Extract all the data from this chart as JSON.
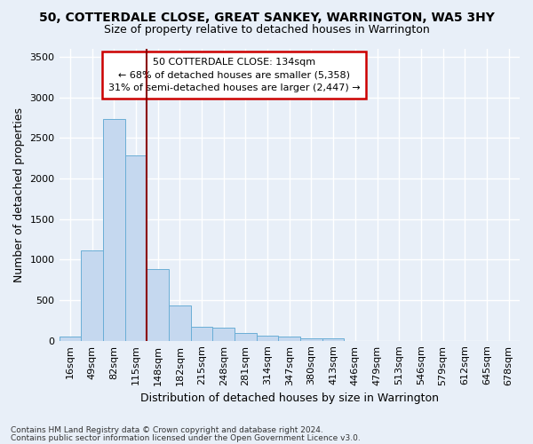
{
  "title1": "50, COTTERDALE CLOSE, GREAT SANKEY, WARRINGTON, WA5 3HY",
  "title2": "Size of property relative to detached houses in Warrington",
  "xlabel": "Distribution of detached houses by size in Warrington",
  "ylabel": "Number of detached properties",
  "categories": [
    "16sqm",
    "49sqm",
    "82sqm",
    "115sqm",
    "148sqm",
    "182sqm",
    "215sqm",
    "248sqm",
    "281sqm",
    "314sqm",
    "347sqm",
    "380sqm",
    "413sqm",
    "446sqm",
    "479sqm",
    "513sqm",
    "546sqm",
    "579sqm",
    "612sqm",
    "645sqm",
    "678sqm"
  ],
  "values": [
    55,
    1110,
    2730,
    2290,
    880,
    430,
    175,
    165,
    95,
    60,
    50,
    30,
    25,
    0,
    0,
    0,
    0,
    0,
    0,
    0,
    0
  ],
  "bar_color": "#c5d8ef",
  "bar_edge_color": "#6aaed6",
  "vline_x": 3.5,
  "vline_color": "#8b0000",
  "annotation_line1": "50 COTTERDALE CLOSE: 134sqm",
  "annotation_line2": "← 68% of detached houses are smaller (5,358)",
  "annotation_line3": "31% of semi-detached houses are larger (2,447) →",
  "annotation_box_facecolor": "#ffffff",
  "annotation_box_edgecolor": "#cc0000",
  "ylim": [
    0,
    3600
  ],
  "yticks": [
    0,
    500,
    1000,
    1500,
    2000,
    2500,
    3000,
    3500
  ],
  "footer1": "Contains HM Land Registry data © Crown copyright and database right 2024.",
  "footer2": "Contains public sector information licensed under the Open Government Licence v3.0.",
  "bg_color": "#e8eff8",
  "grid_color": "#ffffff",
  "title1_fontsize": 10,
  "title2_fontsize": 9,
  "xlabel_fontsize": 9,
  "ylabel_fontsize": 9,
  "tick_fontsize": 8,
  "footer_fontsize": 6.5,
  "annot_fontsize": 8
}
